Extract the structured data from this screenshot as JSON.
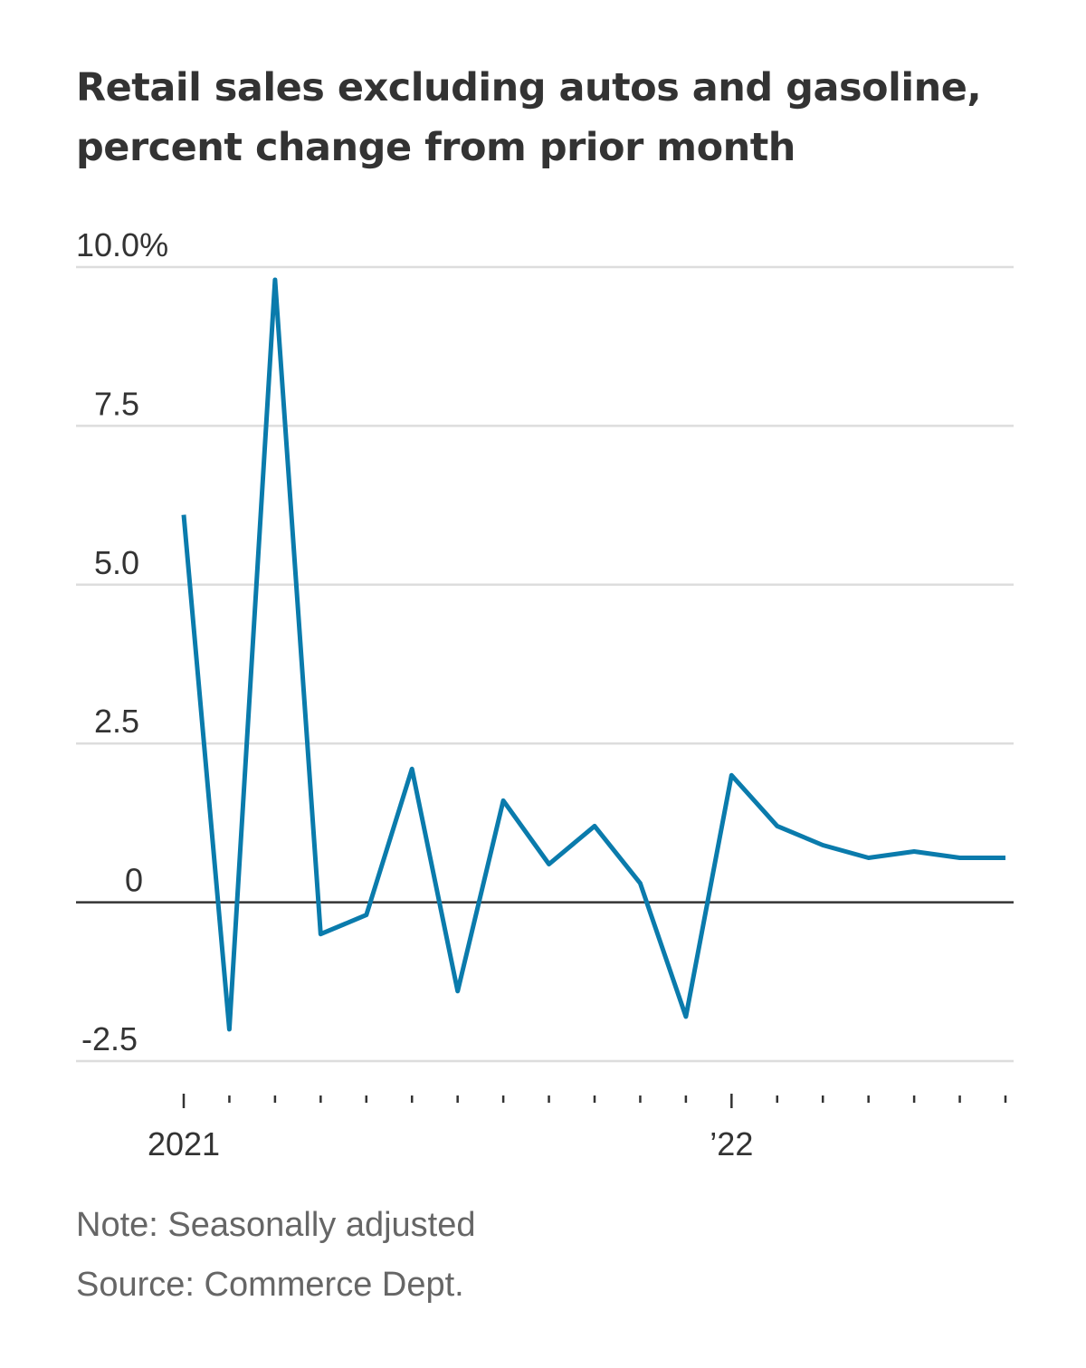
{
  "chart_data": {
    "type": "line",
    "title_lines": [
      "Retail sales excluding autos and gasoline,",
      "percent change from prior month"
    ],
    "xlabel": "",
    "ylabel": "",
    "x": [
      "2021-01",
      "2021-02",
      "2021-03",
      "2021-04",
      "2021-05",
      "2021-06",
      "2021-07",
      "2021-08",
      "2021-09",
      "2021-10",
      "2021-11",
      "2021-12",
      "2022-01",
      "2022-02",
      "2022-03",
      "2022-04",
      "2022-05",
      "2022-06",
      "2022-07"
    ],
    "series": [
      {
        "name": "",
        "color": "#0a7bac",
        "values": [
          6.1,
          -2.0,
          9.8,
          -0.5,
          -0.2,
          2.1,
          -1.4,
          1.6,
          0.6,
          1.2,
          0.3,
          -1.8,
          2.0,
          1.2,
          0.9,
          0.7,
          0.8,
          0.7,
          0.7
        ]
      }
    ],
    "ylim": [
      -2.5,
      10.0
    ],
    "y_ticks": [
      {
        "value": 10.0,
        "label": "10.0%"
      },
      {
        "value": 7.5,
        "label": "7.5"
      },
      {
        "value": 5.0,
        "label": "5.0"
      },
      {
        "value": 2.5,
        "label": "2.5"
      },
      {
        "value": 0,
        "label": "0"
      },
      {
        "value": -2.5,
        "label": "-2.5"
      }
    ],
    "x_tick_labels": [
      {
        "at": "2021-01",
        "label": "2021"
      },
      {
        "at": "2022-01",
        "label": "’22"
      }
    ],
    "grid": true,
    "colors": {
      "line": "#0a7bac",
      "grid": "#dddddd",
      "zero": "#333333",
      "text": "#333333",
      "footer": "#666666"
    },
    "note": "Note: Seasonally adjusted",
    "source": "Source: Commerce Dept."
  }
}
